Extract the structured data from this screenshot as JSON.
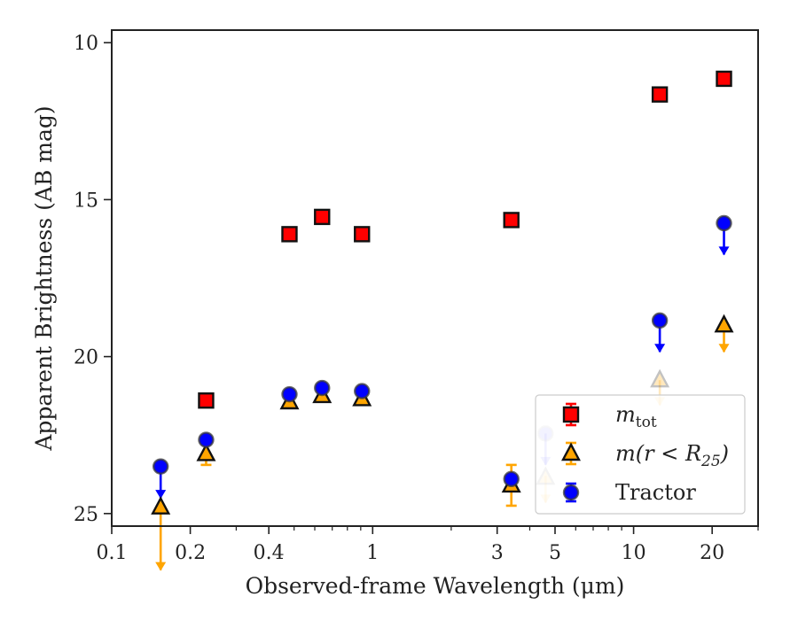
{
  "chart_data": {
    "type": "scatter",
    "xlabel": "Observed-frame Wavelength (μm)",
    "ylabel": "Apparent Brightness (AB mag)",
    "xscale": "log",
    "xlim": [
      0.1,
      30
    ],
    "ylim": [
      25.4,
      9.6
    ],
    "y_inverted": true,
    "x_ticks": [
      {
        "value": 0.1,
        "label": "0.1"
      },
      {
        "value": 0.2,
        "label": "0.2"
      },
      {
        "value": 0.4,
        "label": "0.4"
      },
      {
        "value": 1,
        "label": "1"
      },
      {
        "value": 3,
        "label": "3"
      },
      {
        "value": 5,
        "label": "5"
      },
      {
        "value": 10,
        "label": "10"
      },
      {
        "value": 20,
        "label": "20"
      }
    ],
    "y_ticks": [
      {
        "value": 10,
        "label": "10"
      },
      {
        "value": 15,
        "label": "15"
      },
      {
        "value": 20,
        "label": "20"
      },
      {
        "value": 25,
        "label": "25"
      }
    ],
    "grid": false,
    "legend_position": "bottom-right",
    "series": [
      {
        "key": "m_tot",
        "marker": "square",
        "color": "#ff0000",
        "errcolor": "#ff0000",
        "points": [
          {
            "x": 0.23,
            "y": 21.4
          },
          {
            "x": 0.48,
            "y": 16.1
          },
          {
            "x": 0.64,
            "y": 15.55
          },
          {
            "x": 0.91,
            "y": 16.1
          },
          {
            "x": 3.4,
            "y": 15.65
          },
          {
            "x": 12.6,
            "y": 11.65
          },
          {
            "x": 22.2,
            "y": 11.15
          }
        ]
      },
      {
        "key": "m_r25",
        "marker": "triangle",
        "color": "#ffa500",
        "errcolor": "#ffa500",
        "points": [
          {
            "x": 0.154,
            "y": 24.8,
            "err_lo": 0,
            "err_hi": 2.0,
            "upper_limit": true
          },
          {
            "x": 0.23,
            "y": 23.1,
            "err_lo": 0.35,
            "err_hi": 0.35
          },
          {
            "x": 0.48,
            "y": 21.45
          },
          {
            "x": 0.64,
            "y": 21.25
          },
          {
            "x": 0.91,
            "y": 21.35
          },
          {
            "x": 3.4,
            "y": 24.1,
            "err_lo": 0.65,
            "err_hi": 0.65
          },
          {
            "x": 4.6,
            "y": 23.85,
            "err_lo": 0.05,
            "err_hi": 0.8,
            "upper_limit": true,
            "faded": true
          },
          {
            "x": 12.6,
            "y": 20.75,
            "err_lo": 0,
            "err_hi": 0.8,
            "upper_limit": true,
            "faded": true
          },
          {
            "x": 22.2,
            "y": 19.0,
            "err_lo": 0,
            "err_hi": 0.85,
            "upper_limit": true
          }
        ]
      },
      {
        "key": "tractor",
        "marker": "circle",
        "color": "#0000ff",
        "errcolor": "#0000ff",
        "points": [
          {
            "x": 0.154,
            "y": 23.5,
            "err_lo": 0.05,
            "err_hi": 1.0,
            "upper_limit": true
          },
          {
            "x": 0.23,
            "y": 22.65
          },
          {
            "x": 0.48,
            "y": 21.2
          },
          {
            "x": 0.64,
            "y": 21.0
          },
          {
            "x": 0.91,
            "y": 21.1
          },
          {
            "x": 3.4,
            "y": 23.9
          },
          {
            "x": 4.6,
            "y": 22.45,
            "err_lo": 0,
            "err_hi": 1.0,
            "upper_limit": true,
            "faded": true
          },
          {
            "x": 12.6,
            "y": 18.85,
            "err_lo": 0,
            "err_hi": 1.0,
            "upper_limit": true
          },
          {
            "x": 22.2,
            "y": 15.75,
            "err_lo": 0,
            "err_hi": 1.0,
            "upper_limit": true
          }
        ]
      }
    ],
    "legend": [
      {
        "series": "m_tot",
        "label_base": "m",
        "label_sub": "tot"
      },
      {
        "series": "m_r25",
        "label_base": "m(r < R",
        "label_sub": "25",
        "label_tail": ")"
      },
      {
        "series": "tractor",
        "label": "Tractor"
      }
    ]
  }
}
